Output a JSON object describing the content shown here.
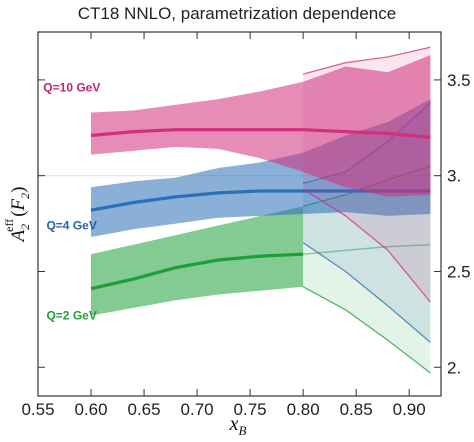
{
  "chart_data": {
    "type": "area",
    "title": "CT18 NNLO, parametrization dependence",
    "xlabel": "x",
    "xlabel_sub": "B",
    "ylabel": {
      "main": "A",
      "sub": "2",
      "sup": "eff",
      "arg_open": "(",
      "arg": "F",
      "arg_sub": "2",
      "arg_close": ")"
    },
    "xlim": [
      0.55,
      0.93
    ],
    "ylim": [
      1.85,
      3.75
    ],
    "x_ticks": [
      "0.55",
      "0.60",
      "0.65",
      "0.70",
      "0.75",
      "0.80",
      "0.85",
      "0.90"
    ],
    "x_tick_values": [
      0.55,
      0.6,
      0.65,
      0.7,
      0.75,
      0.8,
      0.85,
      0.9
    ],
    "y_ticks": [
      "2.",
      "2.5",
      "3.",
      "3.5"
    ],
    "y_tick_values": [
      2.0,
      2.5,
      3.0,
      3.5
    ],
    "reference_line": 3.0,
    "series": [
      {
        "name": "Q=10 GeV",
        "color": "#d0307c",
        "x": [
          0.6,
          0.64,
          0.68,
          0.72,
          0.76,
          0.8,
          0.84,
          0.88,
          0.92
        ],
        "central": [
          3.21,
          3.23,
          3.24,
          3.24,
          3.24,
          3.24,
          3.23,
          3.22,
          3.2
        ],
        "lower": [
          3.11,
          3.13,
          3.15,
          3.14,
          3.09,
          3.02,
          2.94,
          2.89,
          2.9
        ],
        "upper": [
          3.33,
          3.34,
          3.37,
          3.4,
          3.44,
          3.49,
          3.57,
          3.54,
          3.63
        ],
        "x_ext": [
          0.8,
          0.84,
          0.88,
          0.92
        ],
        "lower_ext": [
          2.93,
          2.79,
          2.61,
          2.34
        ],
        "upper_ext": [
          3.53,
          3.59,
          3.62,
          3.67
        ]
      },
      {
        "name": "Q=4 GeV",
        "color": "#2a6fb8",
        "x": [
          0.6,
          0.64,
          0.68,
          0.72,
          0.76,
          0.8,
          0.84,
          0.88,
          0.92
        ],
        "central": [
          2.82,
          2.86,
          2.89,
          2.91,
          2.92,
          2.92,
          2.92,
          2.92,
          2.92
        ],
        "lower": [
          2.68,
          2.72,
          2.75,
          2.78,
          2.79,
          2.8,
          2.81,
          2.79,
          2.8
        ],
        "upper": [
          2.94,
          2.97,
          2.99,
          3.04,
          3.07,
          3.12,
          3.21,
          3.28,
          3.4
        ],
        "x_ext": [
          0.8,
          0.84,
          0.88,
          0.92
        ],
        "lower_ext": [
          2.65,
          2.5,
          2.32,
          2.13
        ],
        "upper_ext": [
          2.96,
          3.02,
          3.18,
          3.38
        ]
      },
      {
        "name": "Q=2 GeV",
        "color": "#1e9e3a",
        "x": [
          0.6,
          0.64,
          0.68,
          0.72,
          0.76,
          0.8
        ],
        "central": [
          2.41,
          2.46,
          2.52,
          2.56,
          2.58,
          2.59
        ],
        "lower": [
          2.27,
          2.31,
          2.35,
          2.38,
          2.4,
          2.42
        ],
        "upper": [
          2.59,
          2.64,
          2.69,
          2.74,
          2.79,
          2.84
        ],
        "x_ext": [
          0.8,
          0.84,
          0.88,
          0.92
        ],
        "lower_ext": [
          2.42,
          2.3,
          2.14,
          1.97
        ],
        "upper_ext": [
          2.84,
          2.9,
          2.98,
          3.05
        ],
        "central_ext": [
          2.59,
          2.61,
          2.63,
          2.64
        ]
      }
    ],
    "annotations": [
      {
        "text": "Q=10 GeV",
        "color": "#c0266e",
        "x": 0.555,
        "y": 3.44
      },
      {
        "text": "Q=4 GeV",
        "color": "#2560a8",
        "x": 0.558,
        "y": 2.72
      },
      {
        "text": "Q=2 GeV",
        "color": "#1e9e3a",
        "x": 0.558,
        "y": 2.25
      }
    ]
  }
}
